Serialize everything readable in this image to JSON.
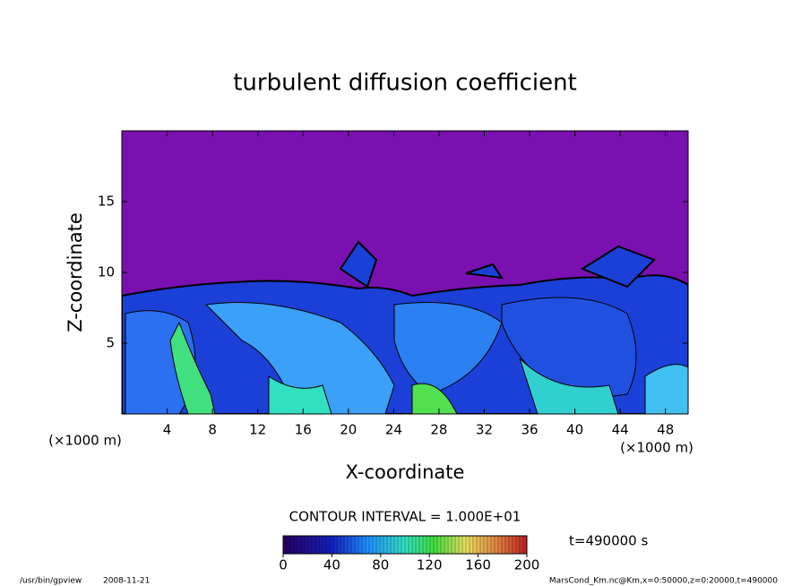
{
  "chart_data": {
    "type": "contour",
    "title": "turbulent diffusion coefficient",
    "xlabel": "X-coordinate",
    "ylabel": "Z-coordinate",
    "axis_unit": "(×1000 m)",
    "xlim": [
      0,
      50
    ],
    "xticks": [
      4,
      8,
      12,
      16,
      20,
      24,
      28,
      32,
      36,
      40,
      44,
      48
    ],
    "ylim": [
      0,
      20
    ],
    "yticks": [
      5,
      10,
      15
    ],
    "colorbar": {
      "label": "CONTOUR INTERVAL = 1.000E+01",
      "lim": [
        0,
        200
      ],
      "ticks": [
        0,
        40,
        80,
        120,
        160,
        200
      ]
    },
    "annotation": "t=490000 s",
    "footer_program": "/usr/bin/gpview",
    "footer_date": "2008-11-21",
    "footer_source": "MarsCond_Km.nc@Km,x=0:50000,z=0:20000,t=490000"
  }
}
